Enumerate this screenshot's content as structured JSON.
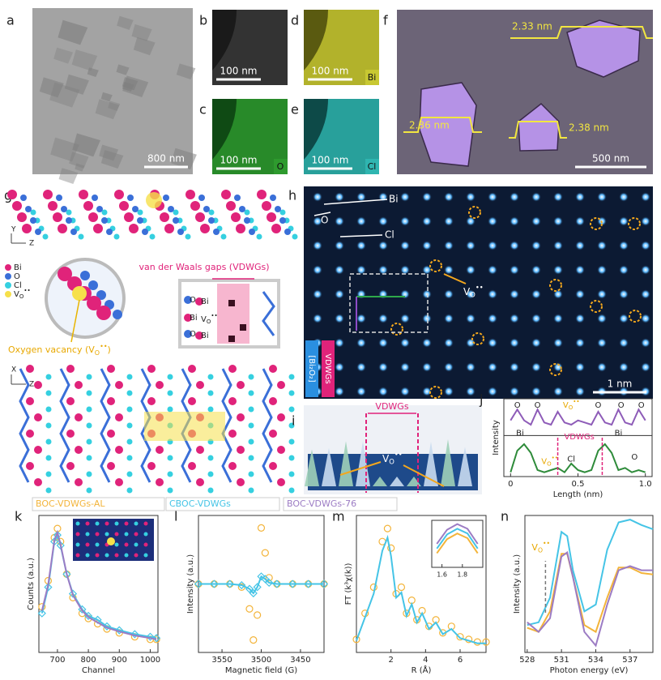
{
  "panels": {
    "a": {
      "label": "a",
      "scale_bar": "800 nm"
    },
    "b": {
      "label": "b",
      "scale_bar": "100 nm"
    },
    "c": {
      "label": "c",
      "scale_bar": "100 nm",
      "element": "O"
    },
    "d": {
      "label": "d",
      "scale_bar": "100 nm",
      "element": "Bi"
    },
    "e": {
      "label": "e",
      "scale_bar": "100 nm",
      "element": "Cl"
    },
    "f": {
      "label": "f",
      "scale_bar": "500 nm",
      "heights": [
        "2.33 nm",
        "2.36 nm",
        "2.38 nm"
      ]
    },
    "g": {
      "label": "g",
      "axes_top": [
        "Y",
        "Z"
      ],
      "axes_bottom": [
        "X",
        "Z"
      ],
      "legend": [
        "Bi",
        "O",
        "Cl",
        {
          "base": "V",
          "sub": "O",
          "sup": "••"
        }
      ],
      "gap_label": "van der Waals gaps (VDWGs)",
      "inset_atoms": [
        "O",
        "Bi",
        "Bi",
        "O",
        "Bi"
      ],
      "inset_vacancy": {
        "base": "V",
        "sub": "O",
        "sup": "••"
      },
      "vacancy_label": {
        "text": "Oxygen vacancy (",
        "vacancy": {
          "base": "V",
          "sub": "O",
          "sup": "••"
        },
        "end": ")"
      }
    },
    "h": {
      "label": "h",
      "legend": [
        "Bi",
        "O",
        "Cl"
      ],
      "vacancy": {
        "base": "V",
        "sub": "O",
        "sup": "••"
      },
      "vdwgs": "VDWGs",
      "layer": "[Bi₂O₂]",
      "scale_bar": "1 nm"
    },
    "i": {
      "label": "i",
      "vdwgs": "VDWGs",
      "vacancy": {
        "base": "V",
        "sub": "O",
        "sup": "••"
      }
    }
  },
  "chart_data": [
    {
      "type": "line",
      "label": "j",
      "xlabel": "Length (nm)",
      "ylabel": "Intensity",
      "x": [
        0,
        0.05,
        0.1,
        0.15,
        0.2,
        0.25,
        0.3,
        0.35,
        0.4,
        0.45,
        0.5,
        0.55,
        0.6,
        0.65,
        0.7,
        0.75,
        0.8,
        0.85,
        0.9,
        0.95,
        1
      ],
      "xlim": [
        -0.05,
        1.05
      ],
      "ylim": [
        0,
        1.8
      ],
      "xticks": [
        0,
        0.5,
        {
          "value": 1,
          "label": "1.0"
        }
      ],
      "series": [
        {
          "color": "#8e5cb8",
          "marker": "none",
          "line": true,
          "values": [
            1.3,
            1.55,
            1.3,
            1.2,
            1.55,
            1.25,
            1.2,
            1.5,
            1.25,
            1.2,
            1.3,
            1.25,
            1.2,
            1.5,
            1.25,
            1.2,
            1.55,
            1.25,
            1.2,
            1.55,
            1.3
          ]
        },
        {
          "color": "#2e8b3a",
          "marker": "none",
          "line": true,
          "values": [
            0.1,
            0.6,
            0.75,
            0.55,
            0.15,
            0.1,
            0.15,
            0.2,
            0.1,
            0.3,
            0.15,
            0.1,
            0.15,
            0.6,
            0.75,
            0.55,
            0.15,
            0.2,
            0.1,
            0.15,
            0.1
          ]
        }
      ],
      "annotations_top": [
        "O",
        "O",
        {
          "base": "V",
          "sub": "O",
          "sup": "••"
        },
        "O",
        "O",
        "O"
      ],
      "annotations_bottom": [
        "Bi",
        {
          "base": "V",
          "sub": "O",
          "sup": "••"
        },
        "VDWGs",
        "Cl",
        "Bi",
        "O"
      ]
    },
    {
      "type": "line",
      "label": "k",
      "xlabel": "Channel",
      "ylabel": "Counts (a.u.)",
      "x": [
        650,
        670,
        690,
        700,
        710,
        730,
        750,
        780,
        800,
        830,
        860,
        900,
        950,
        1000,
        1020
      ],
      "xlim": [
        640,
        1025
      ],
      "ylim": [
        0,
        1.05
      ],
      "xticks": [
        700,
        800,
        900,
        1000
      ],
      "series": [
        {
          "name": "BOC-VDWGs-AL",
          "color": "#f3b43a",
          "marker": "circle",
          "line": false,
          "values": [
            0.35,
            0.55,
            0.88,
            0.95,
            0.85,
            0.6,
            0.42,
            0.3,
            0.26,
            0.22,
            0.18,
            0.15,
            0.12,
            0.1,
            0.1
          ]
        },
        {
          "name": "CBOC-VDWGs",
          "color": "#45c4e6",
          "marker": "diamond",
          "line": true,
          "values": [
            0.3,
            0.5,
            0.85,
            0.9,
            0.82,
            0.6,
            0.45,
            0.33,
            0.28,
            0.25,
            0.2,
            0.17,
            0.14,
            0.12,
            0.11
          ]
        },
        {
          "name": "BOC-VDWGs-76",
          "color": "#9c7cc4",
          "marker": "none",
          "line": true,
          "values": [
            0.32,
            0.52,
            0.86,
            0.92,
            0.83,
            0.6,
            0.44,
            0.32,
            0.27,
            0.23,
            0.19,
            0.16,
            0.13,
            0.11,
            0.1
          ]
        }
      ]
    },
    {
      "type": "line",
      "label": "l",
      "xlabel": "Magnetic field (G)",
      "ylabel": "Intensity (a.u.)",
      "x": [
        3580,
        3560,
        3540,
        3525,
        3515,
        3510,
        3505,
        3500,
        3495,
        3490,
        3480,
        3460,
        3440,
        3420
      ],
      "xlim": [
        3580,
        3420
      ],
      "ylim": [
        -1.1,
        1.1
      ],
      "xticks": [
        3550,
        3500,
        3450
      ],
      "series": [
        {
          "color": "#f3b43a",
          "marker": "circle",
          "line": false,
          "values": [
            0,
            0,
            0,
            -0.05,
            -0.4,
            -0.9,
            -0.5,
            0.9,
            0.5,
            0.1,
            0,
            0,
            0,
            0
          ]
        },
        {
          "color": "#45c4e6",
          "marker": "diamond",
          "line": true,
          "values": [
            0,
            0,
            0,
            -0.02,
            -0.08,
            -0.15,
            -0.05,
            0.12,
            0.08,
            0.02,
            0,
            0,
            0,
            0
          ]
        }
      ]
    },
    {
      "type": "line",
      "label": "m",
      "xlabel": "R (Å)",
      "ylabel": "FT (k³χ(k))",
      "x": [
        0,
        0.5,
        1,
        1.5,
        1.8,
        2,
        2.3,
        2.6,
        2.9,
        3.2,
        3.5,
        3.8,
        4.2,
        4.6,
        5,
        5.5,
        6,
        6.5,
        7,
        7.5
      ],
      "xlim": [
        0,
        7.5
      ],
      "ylim": [
        0,
        1.05
      ],
      "xticks": [
        2,
        4,
        6
      ],
      "series": [
        {
          "color": "#f3b43a",
          "marker": "circle",
          "line": false,
          "values": [
            0.1,
            0.3,
            0.5,
            0.85,
            0.95,
            0.8,
            0.45,
            0.5,
            0.3,
            0.4,
            0.25,
            0.32,
            0.2,
            0.25,
            0.15,
            0.2,
            0.12,
            0.1,
            0.08,
            0.08
          ]
        },
        {
          "color": "#45c4e6",
          "marker": "none",
          "line": true,
          "values": [
            0.09,
            0.27,
            0.45,
            0.78,
            0.88,
            0.74,
            0.42,
            0.46,
            0.28,
            0.37,
            0.23,
            0.3,
            0.18,
            0.23,
            0.14,
            0.18,
            0.11,
            0.09,
            0.07,
            0.07
          ]
        }
      ]
    },
    {
      "type": "line",
      "x": [
        1.55,
        1.65,
        1.75,
        1.85,
        1.95
      ],
      "xlim": [
        1.5,
        2.0
      ],
      "ylim": [
        0,
        1
      ],
      "xticks": [
        1.6,
        1.8
      ],
      "series": [
        {
          "color": "#9c7cc4",
          "marker": "none",
          "line": true,
          "values": [
            0.5,
            0.8,
            0.92,
            0.82,
            0.5
          ]
        },
        {
          "color": "#45c4e6",
          "marker": "none",
          "line": true,
          "values": [
            0.4,
            0.7,
            0.82,
            0.72,
            0.4
          ]
        },
        {
          "color": "#f3b43a",
          "marker": "none",
          "line": true,
          "values": [
            0.3,
            0.6,
            0.72,
            0.62,
            0.3
          ]
        }
      ]
    },
    {
      "type": "line",
      "label": "n",
      "xlabel": "Photon energy (eV)",
      "ylabel": "Intensity (a.u.)",
      "x": [
        528,
        529,
        530,
        531,
        531.5,
        532,
        533,
        534,
        535,
        536,
        537,
        538,
        539
      ],
      "xlim": [
        527.8,
        539
      ],
      "ylim": [
        0,
        1
      ],
      "xticks": [
        528,
        531,
        534,
        537
      ],
      "annotation": {
        "base": "V",
        "sub": "O",
        "sup": "••"
      },
      "series": [
        {
          "color": "#45c4e6",
          "marker": "none",
          "line": true,
          "values": [
            0.2,
            0.22,
            0.4,
            0.88,
            0.85,
            0.6,
            0.3,
            0.35,
            0.75,
            0.95,
            0.97,
            0.93,
            0.9
          ]
        },
        {
          "color": "#f3b43a",
          "marker": "none",
          "line": true,
          "values": [
            0.18,
            0.15,
            0.3,
            0.72,
            0.72,
            0.55,
            0.2,
            0.15,
            0.4,
            0.62,
            0.62,
            0.58,
            0.57
          ]
        },
        {
          "color": "#9c7cc4",
          "marker": "none",
          "line": true,
          "values": [
            0.22,
            0.15,
            0.25,
            0.7,
            0.73,
            0.55,
            0.15,
            0.05,
            0.35,
            0.6,
            0.63,
            0.6,
            0.6
          ]
        }
      ]
    }
  ]
}
